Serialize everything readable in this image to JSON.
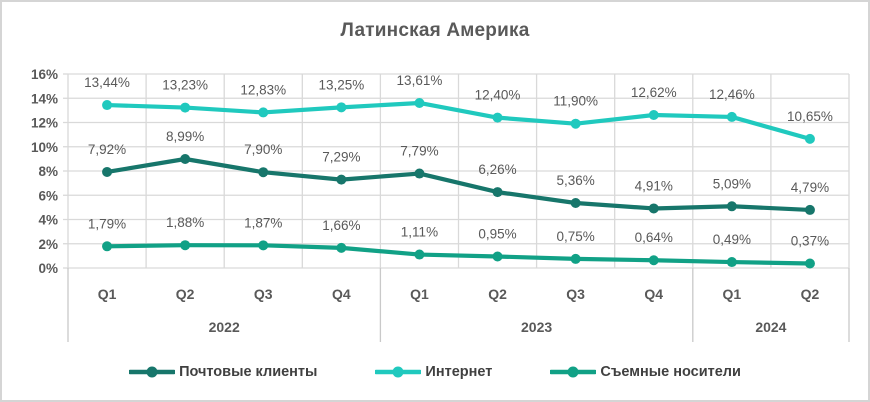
{
  "chart_data": {
    "type": "line",
    "title": "Латинская Америка",
    "categories": [
      "Q1",
      "Q2",
      "Q3",
      "Q4",
      "Q1",
      "Q2",
      "Q3",
      "Q4",
      "Q1",
      "Q2"
    ],
    "year_groups": [
      {
        "label": "2022",
        "span": 4
      },
      {
        "label": "2023",
        "span": 4
      },
      {
        "label": "2024",
        "span": 2
      }
    ],
    "series": [
      {
        "name": "Почтовые клиенты",
        "slug": "mail-clients",
        "color": "#17766B",
        "values": [
          7.92,
          8.99,
          7.9,
          7.29,
          7.79,
          6.26,
          5.36,
          4.91,
          5.09,
          4.79
        ],
        "labels": [
          "7,92%",
          "8,99%",
          "7,90%",
          "7,29%",
          "7,79%",
          "6,26%",
          "5,36%",
          "4,91%",
          "5,09%",
          "4,79%"
        ]
      },
      {
        "name": "Интернет",
        "slug": "internet",
        "color": "#20C9BE",
        "values": [
          13.44,
          13.23,
          12.83,
          13.25,
          13.61,
          12.4,
          11.9,
          12.62,
          12.46,
          10.65
        ],
        "labels": [
          "13,44%",
          "13,23%",
          "12,83%",
          "13,25%",
          "13,61%",
          "12,40%",
          "11,90%",
          "12,62%",
          "12,46%",
          "10,65%"
        ]
      },
      {
        "name": "Съемные носители",
        "slug": "removable-media",
        "color": "#11A186",
        "values": [
          1.79,
          1.88,
          1.87,
          1.66,
          1.11,
          0.95,
          0.75,
          0.64,
          0.49,
          0.37
        ],
        "labels": [
          "1,79%",
          "1,88%",
          "1,87%",
          "1,66%",
          "1,11%",
          "0,95%",
          "0,75%",
          "0,64%",
          "0,49%",
          "0,37%"
        ]
      }
    ],
    "ylim": [
      0,
      16
    ],
    "ytick_step": 2,
    "ytick_labels": [
      "0%",
      "2%",
      "4%",
      "6%",
      "8%",
      "10%",
      "12%",
      "14%",
      "16%"
    ],
    "grid": true,
    "legend_position": "bottom"
  },
  "colors": {
    "title_text": "#595959",
    "axis_text": "#595959",
    "data_label_text": "#595959",
    "gridline": "#D9D9D9",
    "separator": "#C9C9C9",
    "frame_border": "#D5D5D5",
    "legend_text": "#404040"
  }
}
